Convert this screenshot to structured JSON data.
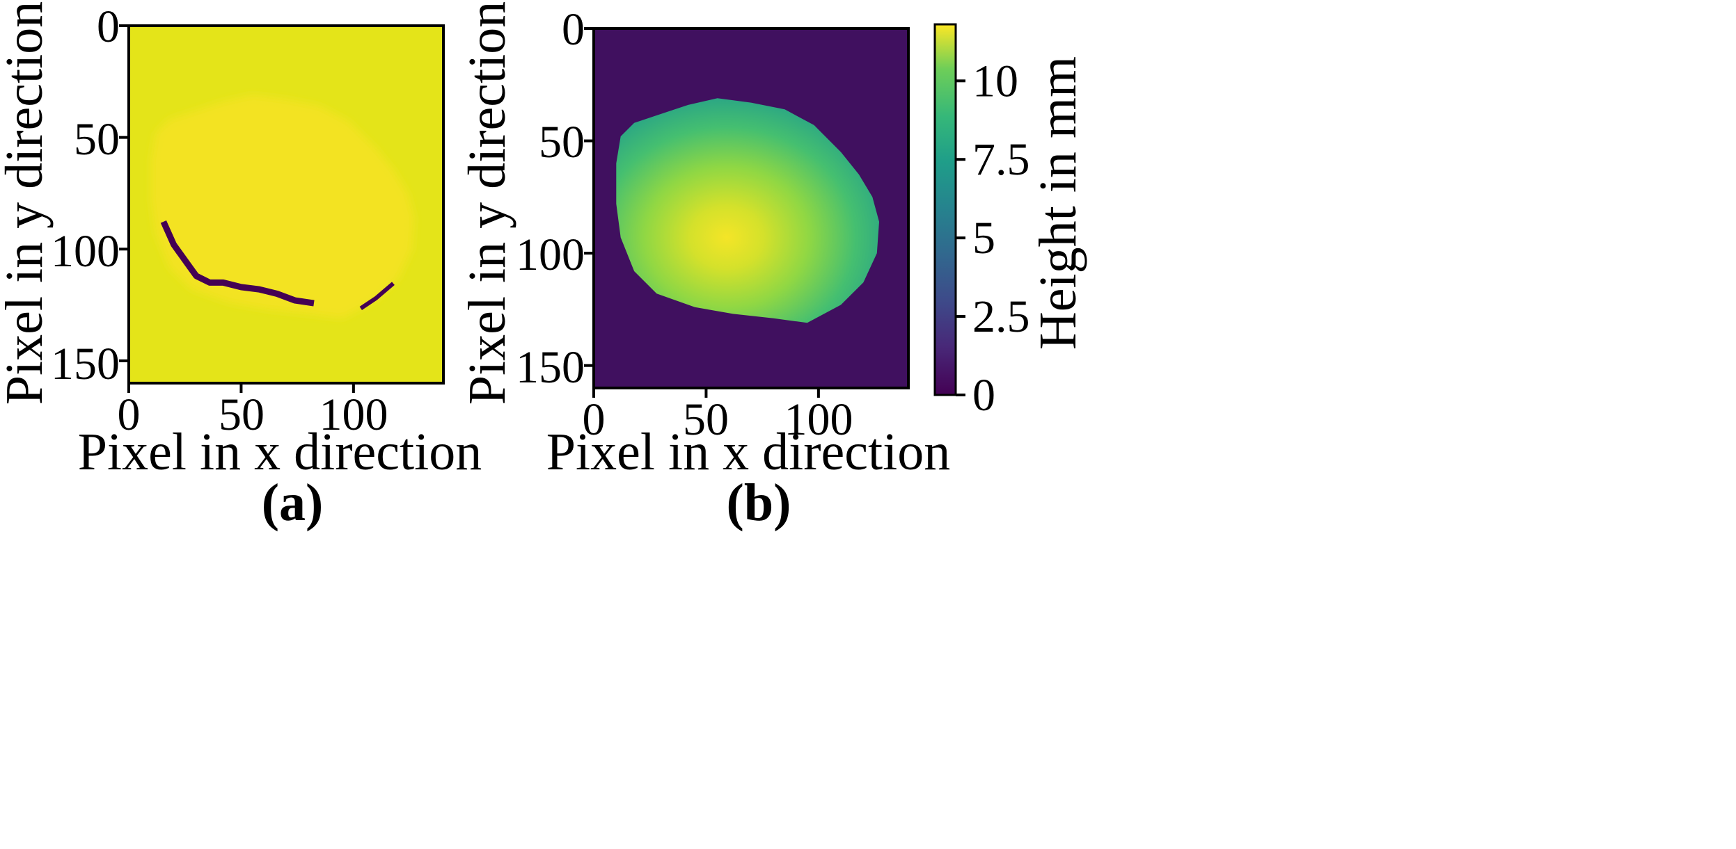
{
  "chart_data": [
    {
      "panel": "(a)",
      "type": "heatmap",
      "title": "",
      "xlabel": "Pixel in x direction",
      "ylabel": "Pixel in y direction",
      "xlim": [
        0,
        140
      ],
      "ylim": [
        160,
        0
      ],
      "xticks": [
        0,
        50,
        100
      ],
      "yticks": [
        0,
        50,
        100,
        150
      ],
      "colorbar": false,
      "description_values": {
        "background_level": "high (yellow)",
        "object_region": "slightly brighter yellow region spanning x ~10-125, y ~32-130",
        "defect_trace_1": [
          [
            16,
            89
          ],
          [
            20,
            98
          ],
          [
            25,
            105
          ],
          [
            30,
            112
          ],
          [
            36,
            115
          ],
          [
            42,
            115
          ],
          [
            50,
            117
          ],
          [
            58,
            118
          ],
          [
            66,
            120
          ],
          [
            74,
            123
          ],
          [
            81,
            124
          ]
        ],
        "defect_trace_2": [
          [
            104,
            126
          ],
          [
            110,
            122
          ],
          [
            117,
            116
          ]
        ]
      }
    },
    {
      "panel": "(b)",
      "type": "heatmap",
      "title": "",
      "xlabel": "Pixel in x direction",
      "ylabel": "Pixel in y direction",
      "xlim": [
        0,
        140
      ],
      "ylim": [
        160,
        0
      ],
      "xticks": [
        0,
        50,
        100
      ],
      "yticks": [
        0,
        50,
        100,
        150
      ],
      "colorbar": {
        "label": "Height in mm",
        "range": [
          0,
          11.8
        ],
        "ticks": [
          0,
          2.5,
          5,
          7.5,
          10
        ],
        "tick_labels": [
          "0",
          "2.5",
          "5",
          "7.5",
          "10"
        ],
        "colormap": "viridis"
      },
      "object_outline": [
        [
          55,
          31
        ],
        [
          70,
          33
        ],
        [
          85,
          36
        ],
        [
          98,
          43
        ],
        [
          110,
          55
        ],
        [
          118,
          65
        ],
        [
          124,
          75
        ],
        [
          127,
          86
        ],
        [
          126,
          100
        ],
        [
          120,
          113
        ],
        [
          110,
          123
        ],
        [
          95,
          131
        ],
        [
          80,
          129
        ],
        [
          62,
          127
        ],
        [
          45,
          124
        ],
        [
          28,
          118
        ],
        [
          18,
          108
        ],
        [
          12,
          93
        ],
        [
          10,
          78
        ],
        [
          10,
          60
        ],
        [
          12,
          48
        ],
        [
          18,
          42
        ],
        [
          30,
          38
        ],
        [
          42,
          34
        ]
      ],
      "peak_height_location": [
        55,
        93
      ],
      "peak_height_mm": 11
    }
  ],
  "labels": {
    "panel_a": "(a)",
    "panel_b": "(b)",
    "x_label_a": "Pixel in x direction",
    "y_label_a": "Pixel in y direction",
    "x_label_b": "Pixel in x direction",
    "y_label_b": "Pixel in y direction",
    "colorbar_label": "Height in mm",
    "xtick_0": "0",
    "xtick_50": "50",
    "xtick_100": "100",
    "ytick_0": "0",
    "ytick_50": "50",
    "ytick_100": "100",
    "ytick_150": "150"
  },
  "colors": {
    "yellow_bg": "#e4e419",
    "yellow_object": "#f5e621",
    "defect": "#440154",
    "bg_b": "#40105f",
    "frame": "#000000"
  }
}
